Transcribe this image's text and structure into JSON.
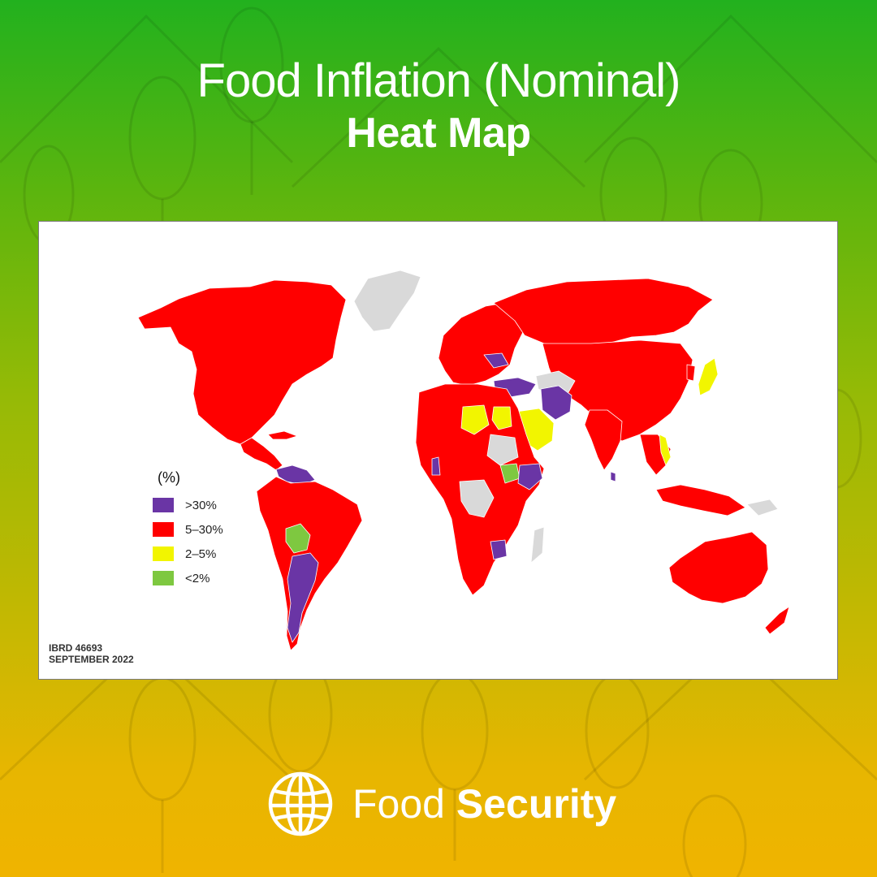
{
  "header": {
    "title_line1": "Food Inflation (Nominal)",
    "title_line2": "Heat Map"
  },
  "map": {
    "legend": {
      "title": "(%)",
      "items": [
        {
          "label": ">30%",
          "color": "#6a35a5"
        },
        {
          "label": "5–30%",
          "color": "#ff0000"
        },
        {
          "label": "2–5%",
          "color": "#f2f500"
        },
        {
          "label": "<2%",
          "color": "#7ec840"
        }
      ]
    },
    "no_data_color": "#d9d9d9",
    "source_line1": "IBRD 46693",
    "source_line2": "SEPTEMBER 2022"
  },
  "footer": {
    "brand_light": "Food",
    "brand_bold": "Security"
  }
}
